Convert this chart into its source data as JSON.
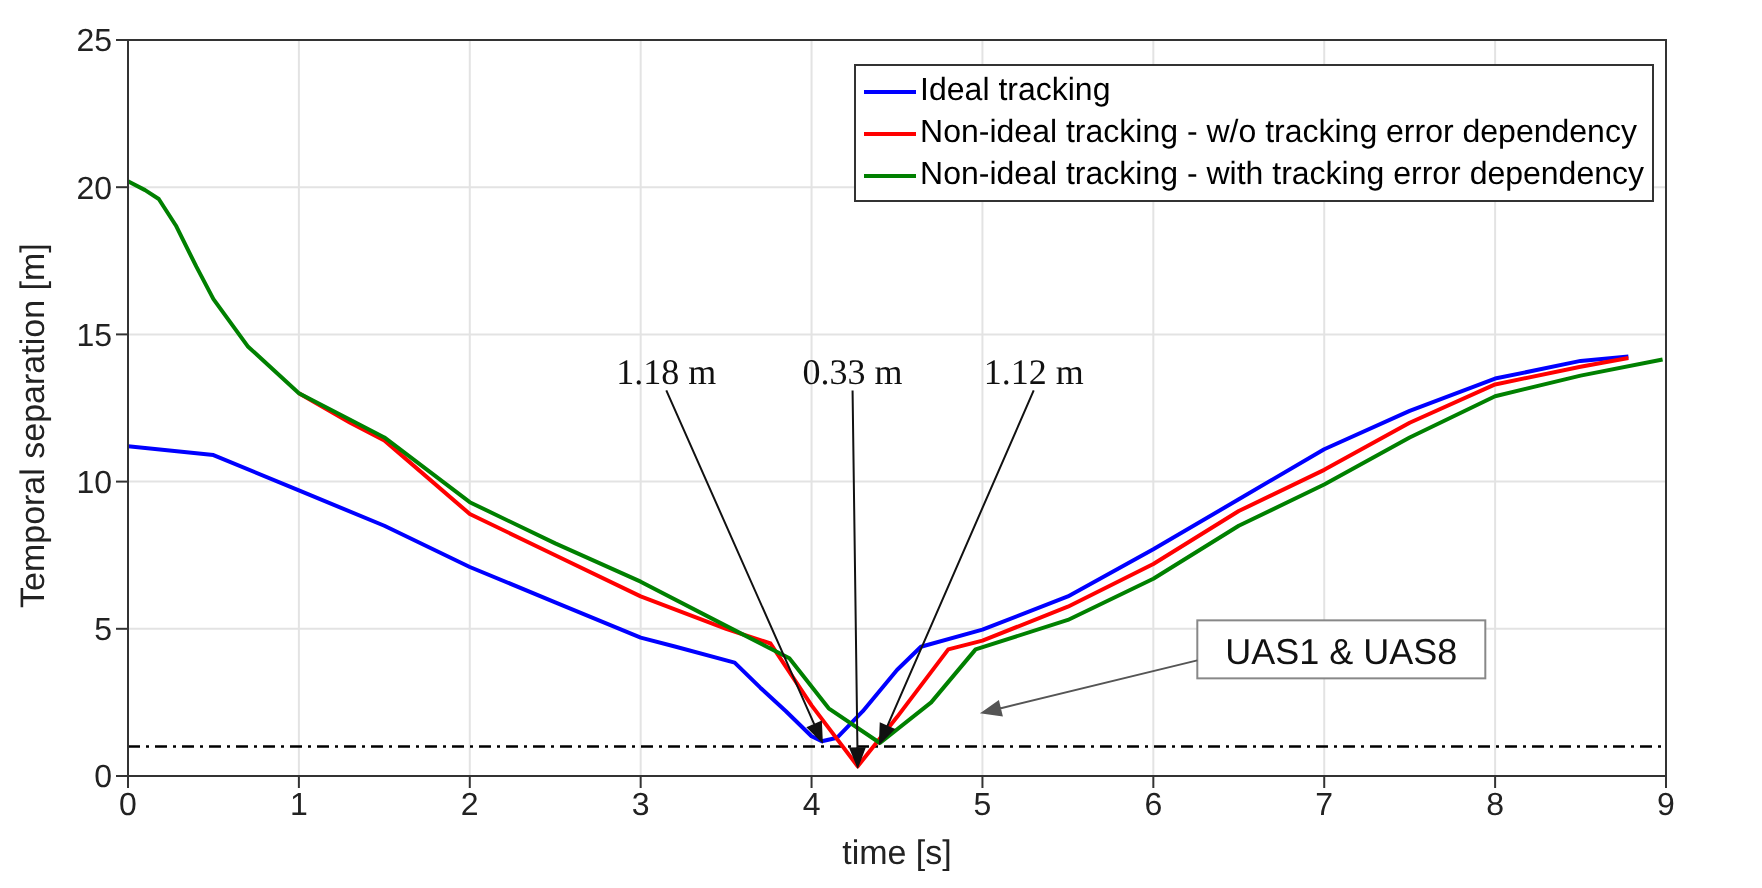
{
  "chart_data": {
    "type": "line",
    "xlabel": "time [s]",
    "ylabel": "Temporal separation [m]",
    "xlim": [
      0,
      9
    ],
    "ylim": [
      0,
      25
    ],
    "xticks": [
      0,
      1,
      2,
      3,
      4,
      5,
      6,
      7,
      8,
      9
    ],
    "yticks": [
      0,
      5,
      10,
      15,
      20,
      25
    ],
    "grid": true,
    "legend": "top right",
    "line_style": "solid",
    "marker": "none",
    "series": [
      {
        "name": "Ideal tracking",
        "color": "#0000ff",
        "x": [
          0,
          0.5,
          1,
          1.5,
          2,
          2.5,
          3,
          3.2,
          3.55,
          3.7,
          3.85,
          4.0,
          4.06,
          4.15,
          4.3,
          4.5,
          4.64,
          5,
          5.5,
          6,
          6.5,
          7,
          7.5,
          8,
          8.5,
          8.78
        ],
        "values": [
          11.2,
          10.9,
          9.7,
          8.5,
          7.1,
          5.9,
          4.7,
          4.4,
          3.85,
          3.0,
          2.2,
          1.35,
          1.18,
          1.3,
          2.2,
          3.6,
          4.39,
          4.97,
          6.1,
          7.7,
          9.4,
          11.1,
          12.4,
          13.5,
          14.1,
          14.25
        ]
      },
      {
        "name": "Non-ideal tracking - w/o tracking error dependency",
        "color": "#ff0000",
        "x": [
          1,
          1.3,
          1.5,
          2,
          2.5,
          3,
          3.5,
          3.76,
          4.0,
          4.27,
          4.5,
          4.8,
          5,
          5.5,
          6,
          6.5,
          7,
          7.5,
          8,
          8.5,
          8.78
        ],
        "values": [
          13.0,
          12.0,
          11.4,
          8.9,
          7.5,
          6.1,
          5.0,
          4.5,
          2.4,
          0.33,
          2.0,
          4.3,
          4.6,
          5.75,
          7.2,
          9.0,
          10.4,
          12.0,
          13.3,
          13.9,
          14.2
        ]
      },
      {
        "name": "Non-ideal tracking - with tracking error dependency",
        "color": "#008000",
        "x": [
          0,
          0.1,
          0.18,
          0.28,
          0.4,
          0.5,
          0.7,
          1,
          1.3,
          1.5,
          2,
          2.5,
          3,
          3.5,
          3.87,
          4.1,
          4.4,
          4.7,
          4.96,
          5.5,
          6,
          6.5,
          7,
          7.5,
          8,
          8.5,
          8.98
        ],
        "values": [
          20.2,
          19.9,
          19.6,
          18.7,
          17.3,
          16.2,
          14.6,
          13.0,
          12.1,
          11.5,
          9.3,
          7.9,
          6.6,
          5.1,
          4.0,
          2.3,
          1.12,
          2.5,
          4.3,
          5.3,
          6.7,
          8.5,
          9.9,
          11.5,
          12.9,
          13.6,
          14.15
        ]
      }
    ],
    "ref_lines": [
      {
        "axis": "y",
        "value": 1,
        "color": "#000000",
        "line_style": "dashdot"
      }
    ],
    "annotations": [
      {
        "text": "1.18 m",
        "x": 4.06,
        "y": 1.18
      },
      {
        "text": "0.33 m",
        "x": 4.27,
        "y": 0.33
      },
      {
        "text": "1.12 m",
        "x": 4.4,
        "y": 1.12
      },
      "UAS1 & UAS8"
    ]
  }
}
